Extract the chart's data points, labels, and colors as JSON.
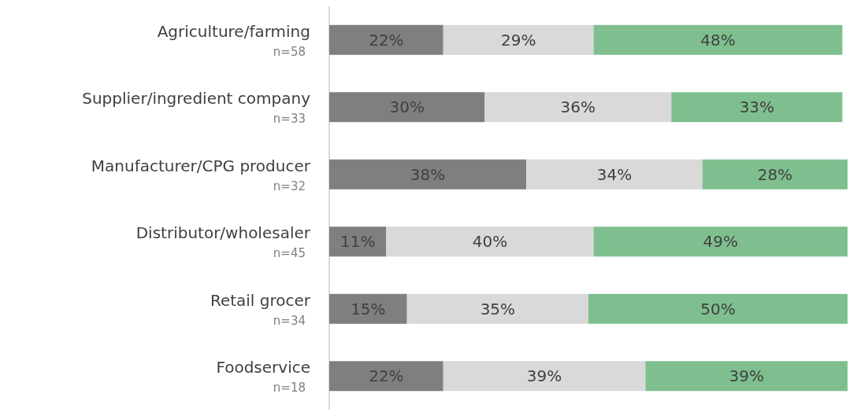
{
  "chart_data": {
    "type": "bar",
    "orientation": "horizontal",
    "stacked": true,
    "categories": [
      "Agriculture/farming\nn=58",
      "Supplier/ingredient company\nn=33",
      "Manufacturer/CPG producer\nn=32",
      "Distributor/wholesaler\nn=45",
      "Retail grocer\nn=34",
      "Foodservice\nn=18"
    ],
    "xlim": [
      0,
      100
    ],
    "series": [
      {
        "color": "#7f7f7f",
        "values": [
          22,
          30,
          38,
          11,
          15,
          22
        ],
        "value_labels": [
          "22%",
          "30%",
          "38%",
          "11%",
          "15%",
          "22%"
        ]
      },
      {
        "color": "#d9d9d9",
        "values": [
          29,
          36,
          34,
          40,
          35,
          39
        ],
        "value_labels": [
          "29%",
          "36%",
          "34%",
          "40%",
          "35%",
          "39%"
        ]
      },
      {
        "color": "#7fbf8f",
        "values": [
          48,
          33,
          28,
          49,
          50,
          39
        ],
        "value_labels": [
          "48%",
          "33%",
          "28%",
          "49%",
          "50%",
          "39%"
        ]
      }
    ],
    "grid": false
  }
}
